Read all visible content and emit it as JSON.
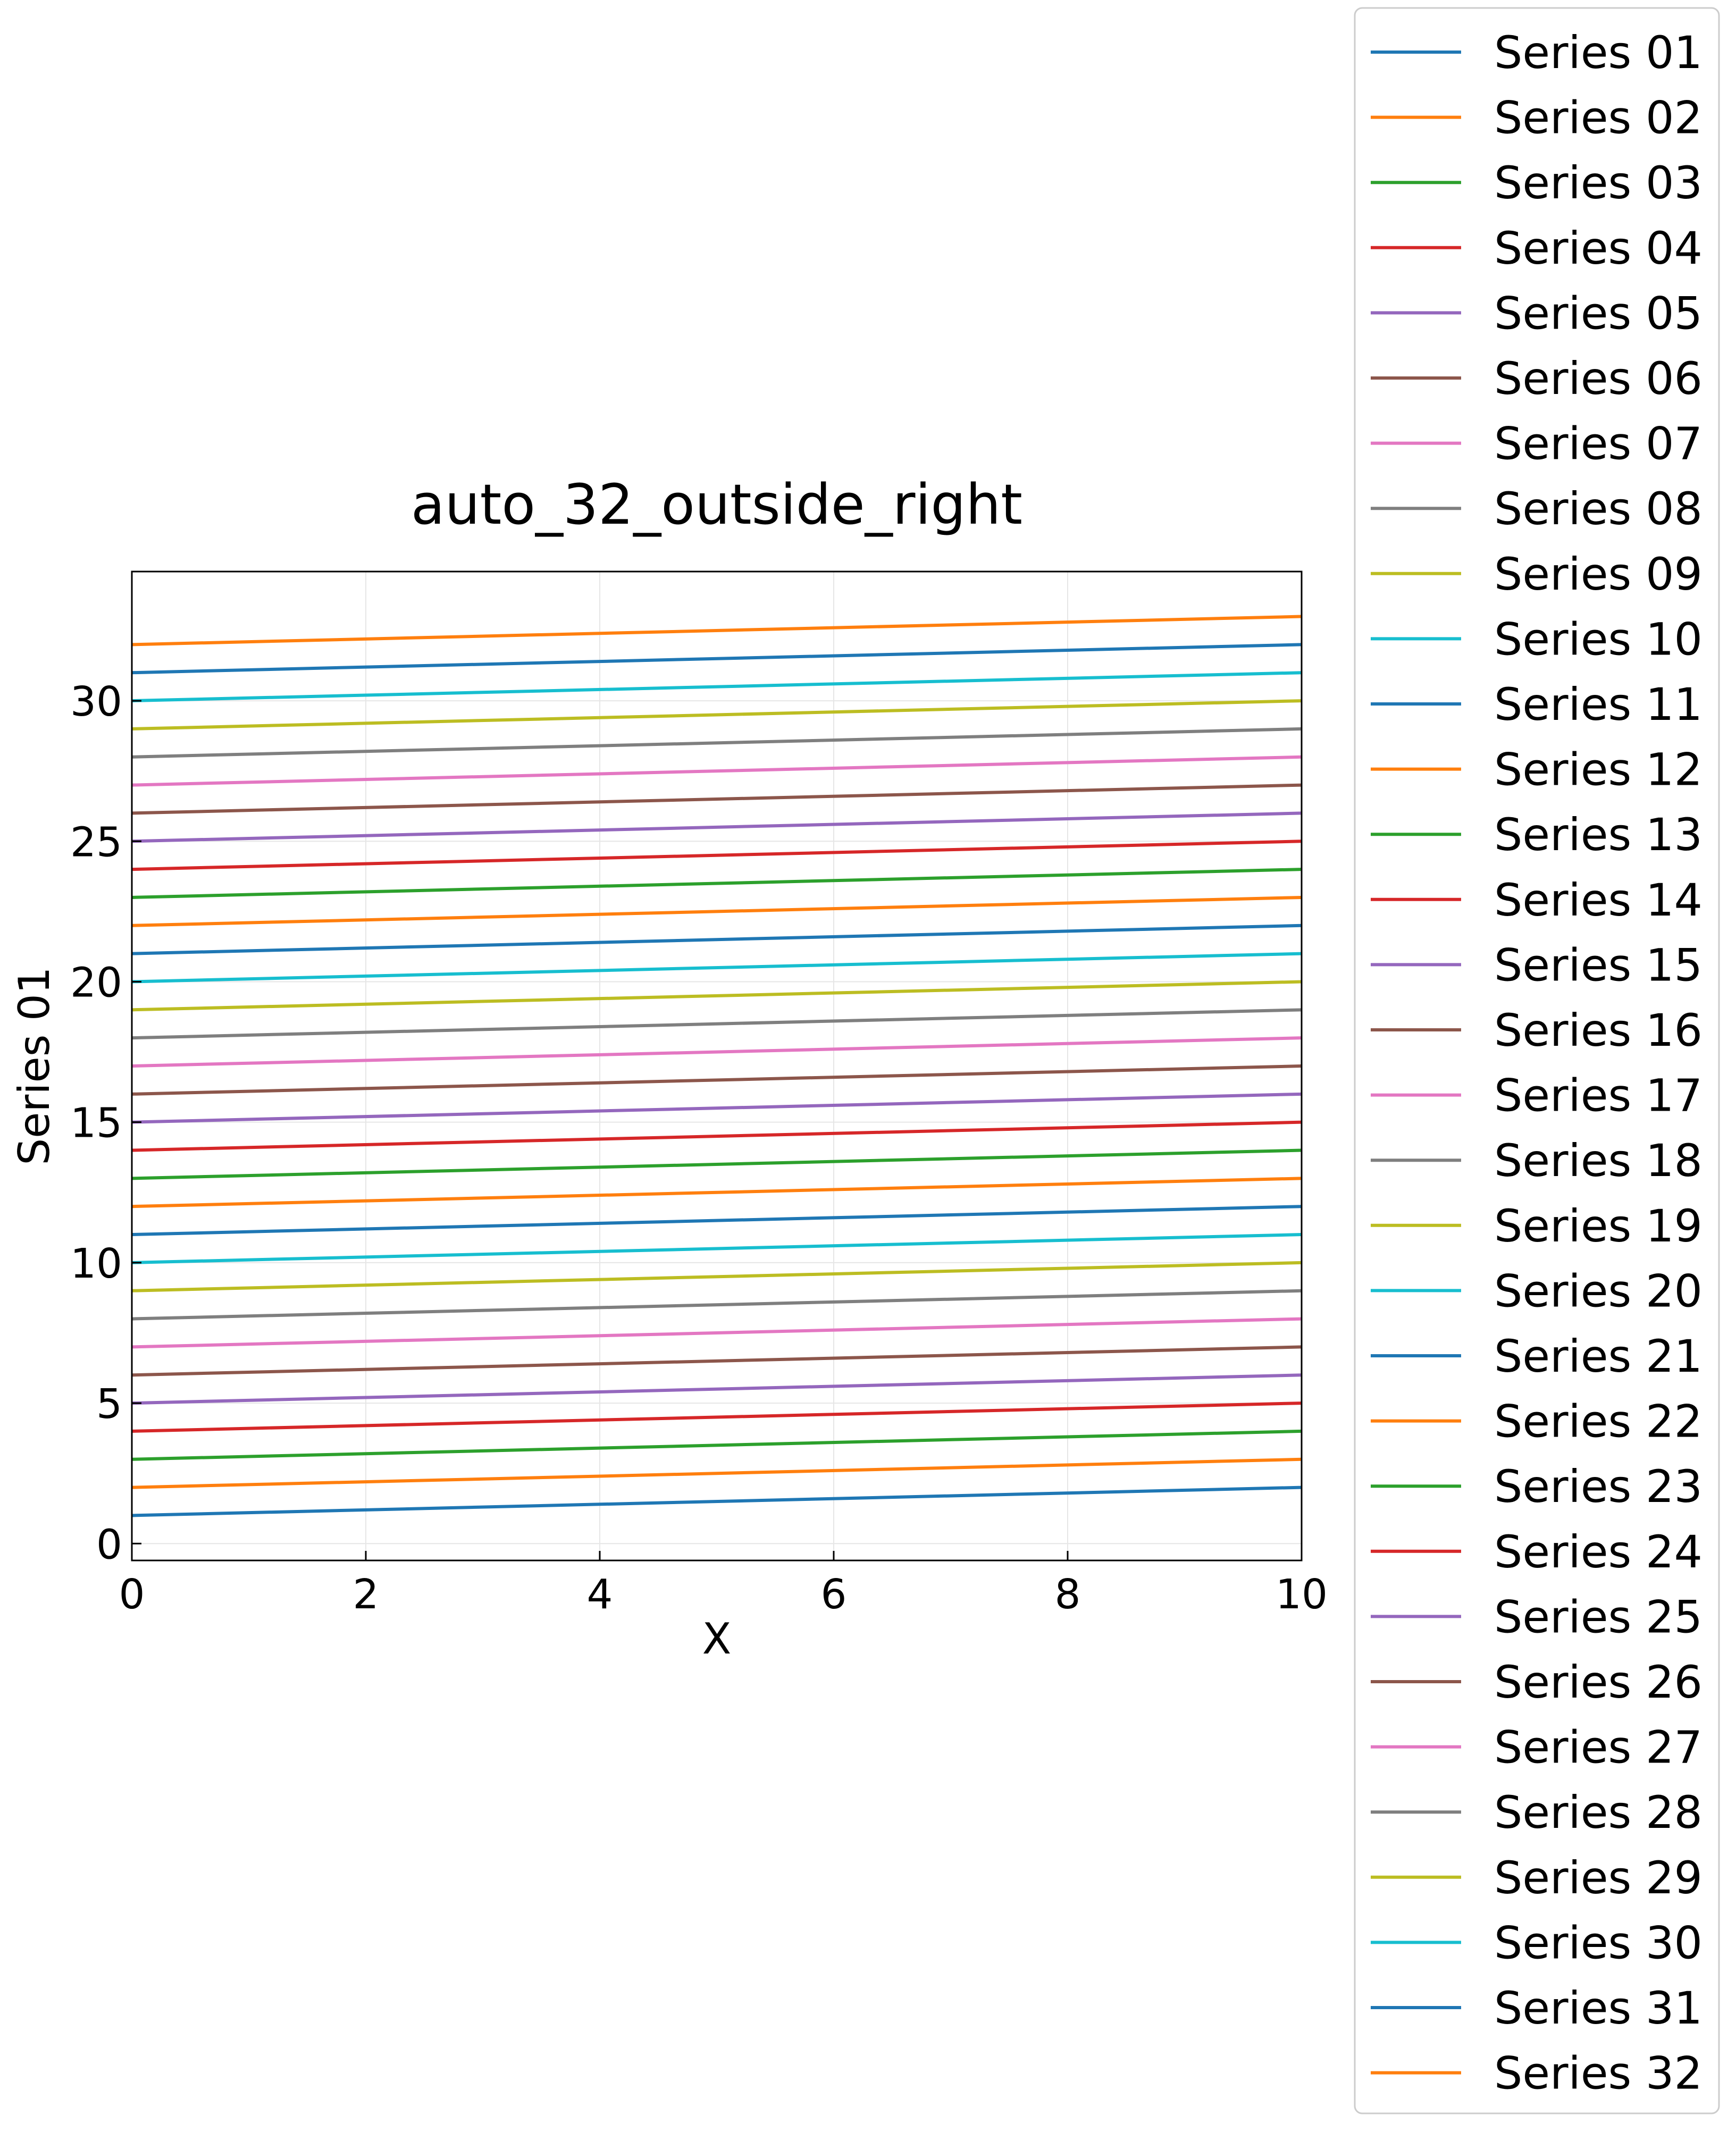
{
  "chart_data": {
    "type": "line",
    "title": "auto_32_outside_right",
    "xlabel": "X",
    "ylabel": "Series 01",
    "xlim": [
      0,
      10
    ],
    "ylim": [
      -0.6,
      34.6
    ],
    "xticks": [
      0,
      2,
      4,
      6,
      8,
      10
    ],
    "yticks": [
      0,
      5,
      10,
      15,
      20,
      25,
      30
    ],
    "grid": true,
    "legend_position": "outside right",
    "x": [
      0,
      10
    ],
    "series": [
      {
        "name": "Series 01",
        "color": "#1f77b4",
        "values": [
          1,
          2
        ]
      },
      {
        "name": "Series 02",
        "color": "#ff7f0e",
        "values": [
          2,
          3
        ]
      },
      {
        "name": "Series 03",
        "color": "#2ca02c",
        "values": [
          3,
          4
        ]
      },
      {
        "name": "Series 04",
        "color": "#d62728",
        "values": [
          4,
          5
        ]
      },
      {
        "name": "Series 05",
        "color": "#9467bd",
        "values": [
          5,
          6
        ]
      },
      {
        "name": "Series 06",
        "color": "#8c564b",
        "values": [
          6,
          7
        ]
      },
      {
        "name": "Series 07",
        "color": "#e377c2",
        "values": [
          7,
          8
        ]
      },
      {
        "name": "Series 08",
        "color": "#7f7f7f",
        "values": [
          8,
          9
        ]
      },
      {
        "name": "Series 09",
        "color": "#bcbd22",
        "values": [
          9,
          10
        ]
      },
      {
        "name": "Series 10",
        "color": "#17becf",
        "values": [
          10,
          11
        ]
      },
      {
        "name": "Series 11",
        "color": "#1f77b4",
        "values": [
          11,
          12
        ]
      },
      {
        "name": "Series 12",
        "color": "#ff7f0e",
        "values": [
          12,
          13
        ]
      },
      {
        "name": "Series 13",
        "color": "#2ca02c",
        "values": [
          13,
          14
        ]
      },
      {
        "name": "Series 14",
        "color": "#d62728",
        "values": [
          14,
          15
        ]
      },
      {
        "name": "Series 15",
        "color": "#9467bd",
        "values": [
          15,
          16
        ]
      },
      {
        "name": "Series 16",
        "color": "#8c564b",
        "values": [
          16,
          17
        ]
      },
      {
        "name": "Series 17",
        "color": "#e377c2",
        "values": [
          17,
          18
        ]
      },
      {
        "name": "Series 18",
        "color": "#7f7f7f",
        "values": [
          18,
          19
        ]
      },
      {
        "name": "Series 19",
        "color": "#bcbd22",
        "values": [
          19,
          20
        ]
      },
      {
        "name": "Series 20",
        "color": "#17becf",
        "values": [
          20,
          21
        ]
      },
      {
        "name": "Series 21",
        "color": "#1f77b4",
        "values": [
          21,
          22
        ]
      },
      {
        "name": "Series 22",
        "color": "#ff7f0e",
        "values": [
          22,
          23
        ]
      },
      {
        "name": "Series 23",
        "color": "#2ca02c",
        "values": [
          23,
          24
        ]
      },
      {
        "name": "Series 24",
        "color": "#d62728",
        "values": [
          24,
          25
        ]
      },
      {
        "name": "Series 25",
        "color": "#9467bd",
        "values": [
          25,
          26
        ]
      },
      {
        "name": "Series 26",
        "color": "#8c564b",
        "values": [
          26,
          27
        ]
      },
      {
        "name": "Series 27",
        "color": "#e377c2",
        "values": [
          27,
          28
        ]
      },
      {
        "name": "Series 28",
        "color": "#7f7f7f",
        "values": [
          28,
          29
        ]
      },
      {
        "name": "Series 29",
        "color": "#bcbd22",
        "values": [
          29,
          30
        ]
      },
      {
        "name": "Series 30",
        "color": "#17becf",
        "values": [
          30,
          31
        ]
      },
      {
        "name": "Series 31",
        "color": "#1f77b4",
        "values": [
          31,
          32
        ]
      },
      {
        "name": "Series 32",
        "color": "#ff7f0e",
        "values": [
          32,
          33
        ]
      }
    ]
  }
}
